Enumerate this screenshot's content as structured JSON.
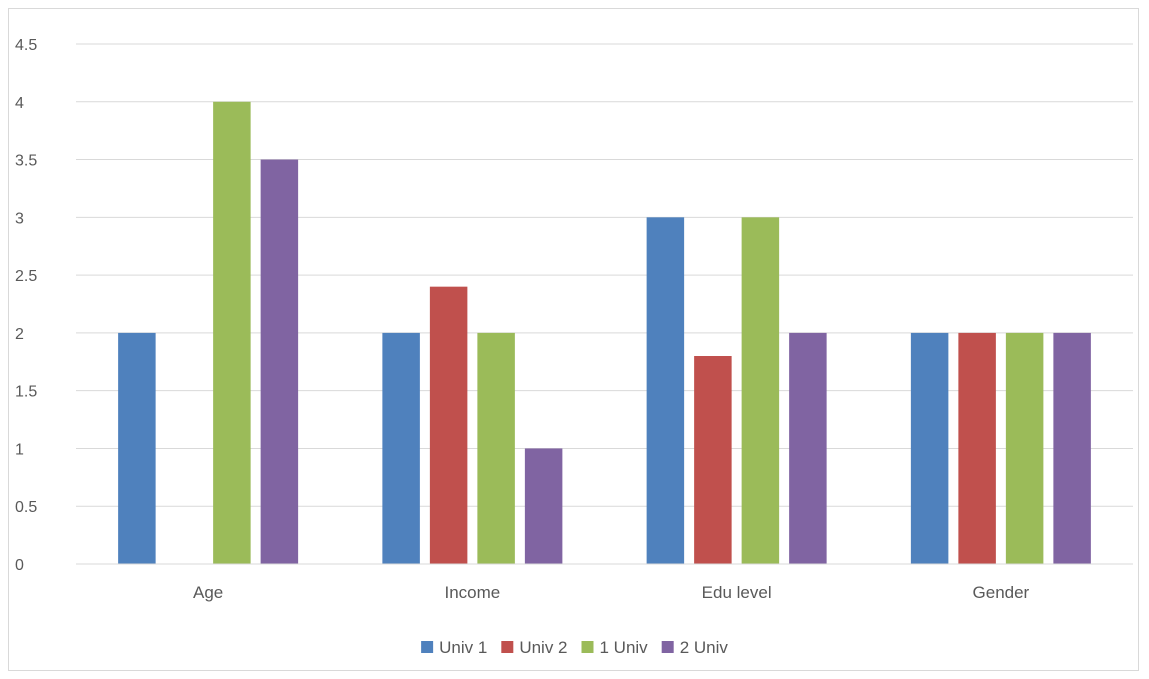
{
  "chart_data": {
    "type": "bar",
    "title": "",
    "xlabel": "",
    "ylabel": "",
    "categories": [
      "Age",
      "Income",
      "Edu level",
      "Gender"
    ],
    "series": [
      {
        "name": "Univ 1",
        "color": "#4F81BD",
        "values": [
          2,
          2,
          3,
          2
        ]
      },
      {
        "name": "Univ 2",
        "color": "#C0504D",
        "values": [
          0,
          2.4,
          1.8,
          2
        ]
      },
      {
        "name": "1 Univ",
        "color": "#9BBB59",
        "values": [
          4,
          2,
          3,
          2
        ]
      },
      {
        "name": "2 Univ",
        "color": "#8064A2",
        "values": [
          3.5,
          1,
          2,
          2
        ]
      }
    ],
    "ylim": [
      0,
      4.5
    ],
    "yticks": [
      "0",
      "0.5",
      "1",
      "1.5",
      "2",
      "2.5",
      "3",
      "3.5",
      "4",
      "4.5"
    ],
    "grid": true,
    "legend_position": "bottom"
  }
}
